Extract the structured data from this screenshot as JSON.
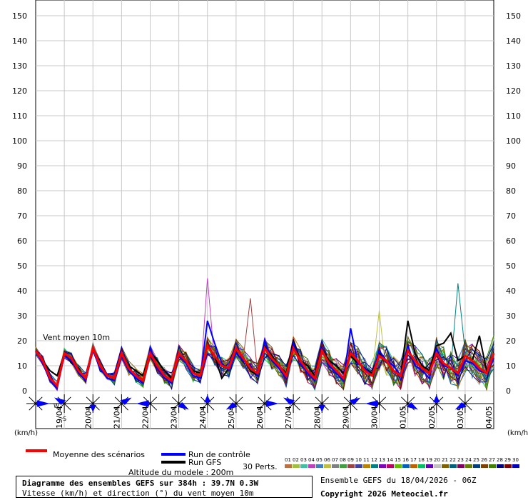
{
  "chart_data": {
    "type": "line",
    "title": "Diagramme des ensembles GEFS sur 384h : 39.7N 0.3W",
    "subtitle": "Vitesse (km/h) et direction (°) du vent moyen 10m",
    "ylabel": "(km/h)",
    "ylim": [
      0,
      150
    ],
    "yticks": [
      0,
      10,
      20,
      30,
      40,
      50,
      60,
      70,
      80,
      90,
      100,
      110,
      120,
      130,
      140,
      150
    ],
    "x_labels": [
      "19/04",
      "20/04",
      "21/04",
      "22/04",
      "23/04",
      "24/04",
      "25/04",
      "26/04",
      "27/04",
      "28/04",
      "29/04",
      "30/04",
      "01/05",
      "02/05",
      "03/05",
      "04/05"
    ],
    "grid": true,
    "x_hours": [
      0,
      6,
      12,
      18,
      24,
      30,
      36,
      42,
      48,
      54,
      60,
      66,
      72,
      78,
      84,
      90,
      96,
      102,
      108,
      114,
      120,
      126,
      132,
      138,
      144,
      150,
      156,
      162,
      168,
      174,
      180,
      186,
      192,
      198,
      204,
      210,
      216,
      222,
      228,
      234,
      240,
      246,
      252,
      258,
      264,
      270,
      276,
      282,
      288,
      294,
      300,
      306,
      312,
      318,
      324,
      330,
      336,
      342,
      348,
      354,
      360,
      366,
      372,
      378,
      384
    ],
    "series": [
      {
        "name": "Moyenne des scénarios",
        "color": "#ff0000",
        "values": [
          16,
          12,
          5,
          2,
          15,
          13,
          8,
          5,
          17,
          10,
          6,
          5,
          15,
          9,
          6,
          4,
          15,
          10,
          6,
          4,
          15,
          12,
          7,
          6,
          18,
          14,
          10,
          9,
          17,
          13,
          9,
          7,
          17,
          13,
          10,
          6,
          17,
          12,
          8,
          5,
          16,
          11,
          8,
          5,
          15,
          12,
          8,
          6,
          14,
          12,
          8,
          6,
          16,
          12,
          9,
          7,
          15,
          11,
          9,
          7,
          14,
          12,
          9,
          7,
          15
        ]
      },
      {
        "name": "Run de contrôle",
        "color": "#0000ff",
        "values": [
          16,
          11,
          4,
          1,
          14,
          12,
          7,
          4,
          16,
          9,
          5,
          4,
          14,
          8,
          5,
          3,
          17,
          9,
          5,
          3,
          14,
          11,
          6,
          5,
          28,
          19,
          11,
          8,
          15,
          12,
          10,
          6,
          20,
          12,
          9,
          5,
          19,
          11,
          7,
          4,
          17,
          10,
          7,
          4,
          25,
          11,
          9,
          6,
          16,
          12,
          10,
          6,
          18,
          10,
          8,
          5,
          17,
          10,
          9,
          6,
          12,
          11,
          8,
          7,
          13
        ]
      },
      {
        "name": "Run GFS",
        "color": "#000000",
        "values": [
          16,
          12,
          8,
          6,
          15,
          11,
          9,
          4,
          17,
          10,
          6,
          5,
          15,
          10,
          8,
          6,
          16,
          12,
          8,
          5,
          14,
          11,
          8,
          7,
          18,
          14,
          5,
          9,
          17,
          13,
          8,
          6,
          18,
          14,
          10,
          7,
          20,
          12,
          10,
          6,
          17,
          12,
          10,
          7,
          14,
          11,
          9,
          7,
          15,
          12,
          8,
          6,
          28,
          15,
          10,
          8,
          18,
          19,
          23,
          12,
          14,
          12,
          22,
          8,
          13
        ]
      }
    ],
    "direction_label": "Vent moyen 10m",
    "wind_directions": [
      "W",
      "S"
    ],
    "perturbations_label": "30 Perts.",
    "perturbation_ids": [
      "01",
      "02",
      "03",
      "04",
      "05",
      "06",
      "07",
      "08",
      "09",
      "10",
      "11",
      "12",
      "13",
      "14",
      "15",
      "16",
      "17",
      "18",
      "19",
      "20",
      "21",
      "22",
      "23",
      "24",
      "25",
      "26",
      "27",
      "28",
      "29",
      "30"
    ],
    "perturbation_colors": [
      "#c07040",
      "#a0c040",
      "#40c0a0",
      "#c040c0",
      "#4080c0",
      "#c0c040",
      "#808080",
      "#40a040",
      "#a04040",
      "#4040a0",
      "#c08000",
      "#008080",
      "#8000c0",
      "#c00060",
      "#60c000",
      "#0060c0",
      "#c06000",
      "#00c060",
      "#6000c0",
      "#c0c0c0",
      "#806000",
      "#006080",
      "#800060",
      "#608000",
      "#004080",
      "#804000",
      "#408000",
      "#000080",
      "#800000",
      "#0000c0"
    ]
  },
  "legend": {
    "mean": "Moyenne des scénarios",
    "control": "Run de contrôle",
    "gfs": "Run GFS",
    "altitude": "Altitude du modele : 200m",
    "perts": "30 Perts."
  },
  "footer": {
    "title": "Diagramme des ensembles GEFS sur 384h : 39.7N 0.3W",
    "subtitle": "Vitesse (km/h) et direction (°) du vent moyen 10m",
    "run_info": "Ensemble GEFS du 18/04/2026 - 06Z",
    "copyright": "Copyright 2026 Meteociel.fr"
  },
  "axis_unit": "(km/h)",
  "wind_label": "Vent moyen 10m"
}
